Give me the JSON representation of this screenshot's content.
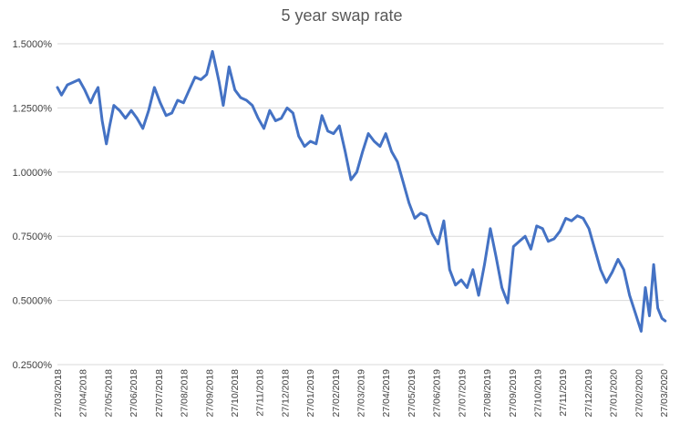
{
  "chart_data": {
    "type": "line",
    "title": "5 year swap rate",
    "xlabel": "",
    "ylabel": "",
    "ylim": [
      0.25,
      1.5
    ],
    "y_ticks": [
      0.25,
      0.5,
      0.75,
      1.0,
      1.25,
      1.5
    ],
    "y_tick_labels": [
      "0.2500%",
      "0.5000%",
      "0.7500%",
      "1.0000%",
      "1.2500%",
      "1.5000%"
    ],
    "x_tick_labels": [
      "27/03/2018",
      "27/04/2018",
      "27/05/2018",
      "27/06/2018",
      "27/07/2018",
      "27/08/2018",
      "27/09/2018",
      "27/10/2018",
      "27/11/2018",
      "27/12/2018",
      "27/01/2019",
      "27/02/2019",
      "27/03/2019",
      "27/04/2019",
      "27/05/2019",
      "27/06/2019",
      "27/07/2019",
      "27/08/2019",
      "27/09/2019",
      "27/10/2019",
      "27/11/2019",
      "27/12/2019",
      "27/01/2020",
      "27/02/2020",
      "27/03/2020"
    ],
    "grid": true,
    "legend": "none",
    "color": "#4472c4",
    "series": [
      {
        "x": [
          "2018-03-27",
          "2018-04-01",
          "2018-04-08",
          "2018-04-15",
          "2018-04-22",
          "2018-04-29",
          "2018-05-06",
          "2018-05-10",
          "2018-05-15",
          "2018-05-20",
          "2018-05-25",
          "2018-05-29",
          "2018-06-03",
          "2018-06-10",
          "2018-06-17",
          "2018-06-24",
          "2018-07-01",
          "2018-07-08",
          "2018-07-15",
          "2018-07-22",
          "2018-07-29",
          "2018-08-05",
          "2018-08-12",
          "2018-08-19",
          "2018-08-26",
          "2018-09-02",
          "2018-09-09",
          "2018-09-16",
          "2018-09-23",
          "2018-09-30",
          "2018-10-04",
          "2018-10-08",
          "2018-10-13",
          "2018-10-20",
          "2018-10-27",
          "2018-11-03",
          "2018-11-10",
          "2018-11-17",
          "2018-11-24",
          "2018-12-01",
          "2018-12-08",
          "2018-12-15",
          "2018-12-22",
          "2018-12-29",
          "2019-01-05",
          "2019-01-12",
          "2019-01-19",
          "2019-01-26",
          "2019-02-02",
          "2019-02-09",
          "2019-02-16",
          "2019-02-23",
          "2019-03-02",
          "2019-03-09",
          "2019-03-16",
          "2019-03-23",
          "2019-03-30",
          "2019-04-06",
          "2019-04-13",
          "2019-04-20",
          "2019-04-27",
          "2019-05-04",
          "2019-05-11",
          "2019-05-18",
          "2019-05-25",
          "2019-06-01",
          "2019-06-08",
          "2019-06-15",
          "2019-06-22",
          "2019-06-29",
          "2019-07-06",
          "2019-07-13",
          "2019-07-20",
          "2019-07-27",
          "2019-08-03",
          "2019-08-10",
          "2019-08-17",
          "2019-08-24",
          "2019-08-31",
          "2019-09-07",
          "2019-09-14",
          "2019-09-21",
          "2019-09-28",
          "2019-10-05",
          "2019-10-12",
          "2019-10-19",
          "2019-10-26",
          "2019-11-02",
          "2019-11-09",
          "2019-11-16",
          "2019-11-23",
          "2019-11-30",
          "2019-12-07",
          "2019-12-14",
          "2019-12-21",
          "2019-12-28",
          "2020-01-04",
          "2020-01-11",
          "2020-01-18",
          "2020-01-25",
          "2020-02-01",
          "2020-02-08",
          "2020-02-15",
          "2020-02-22",
          "2020-02-29",
          "2020-03-05",
          "2020-03-10",
          "2020-03-15",
          "2020-03-20",
          "2020-03-25",
          "2020-03-29"
        ],
        "values": [
          1.33,
          1.3,
          1.34,
          1.35,
          1.36,
          1.32,
          1.27,
          1.3,
          1.33,
          1.2,
          1.11,
          1.18,
          1.26,
          1.24,
          1.21,
          1.24,
          1.21,
          1.17,
          1.24,
          1.33,
          1.27,
          1.22,
          1.23,
          1.28,
          1.27,
          1.32,
          1.37,
          1.36,
          1.38,
          1.47,
          1.41,
          1.35,
          1.26,
          1.41,
          1.32,
          1.29,
          1.28,
          1.26,
          1.21,
          1.17,
          1.24,
          1.2,
          1.21,
          1.25,
          1.23,
          1.14,
          1.1,
          1.12,
          1.11,
          1.22,
          1.16,
          1.15,
          1.18,
          1.08,
          0.97,
          1.0,
          1.08,
          1.15,
          1.12,
          1.1,
          1.15,
          1.08,
          1.04,
          0.96,
          0.88,
          0.82,
          0.84,
          0.83,
          0.76,
          0.72,
          0.81,
          0.62,
          0.56,
          0.58,
          0.55,
          0.62,
          0.52,
          0.64,
          0.78,
          0.67,
          0.55,
          0.49,
          0.71,
          0.73,
          0.75,
          0.7,
          0.79,
          0.78,
          0.73,
          0.74,
          0.77,
          0.82,
          0.81,
          0.83,
          0.82,
          0.78,
          0.7,
          0.62,
          0.57,
          0.61,
          0.66,
          0.62,
          0.52,
          0.45,
          0.38,
          0.55,
          0.44,
          0.64,
          0.47,
          0.43,
          0.42
        ]
      }
    ]
  }
}
